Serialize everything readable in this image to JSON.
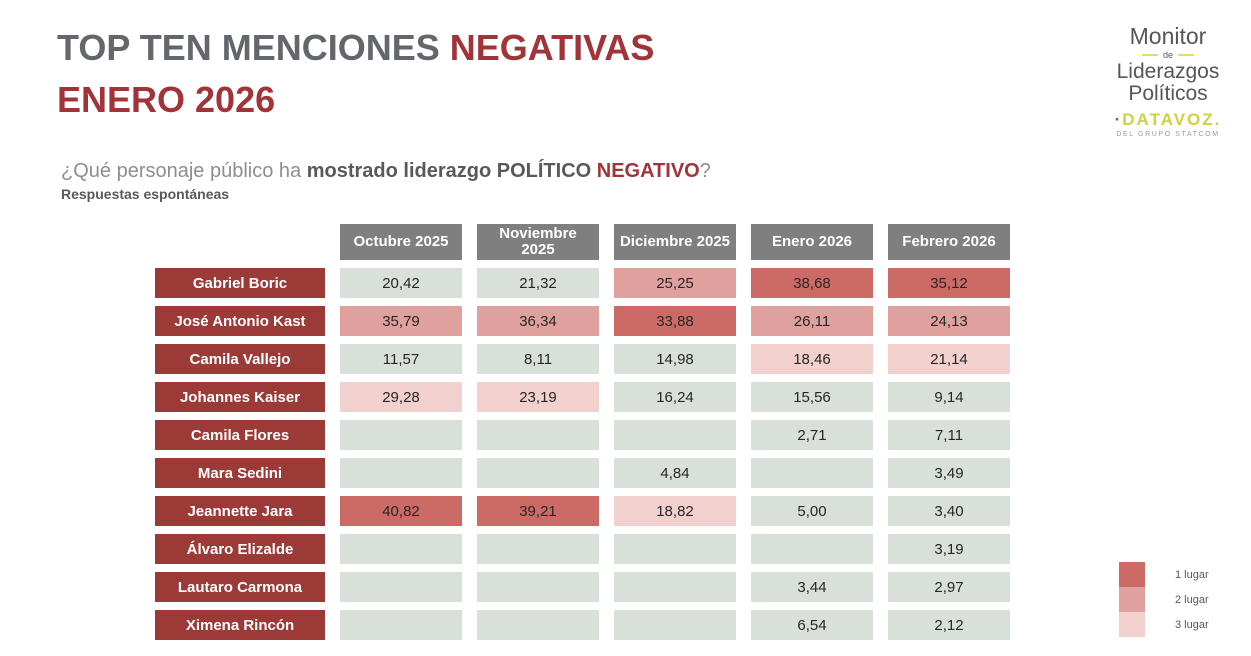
{
  "page": {
    "title": {
      "part_gray": "TOP TEN MENCIONES ",
      "part_red": "NEGATIVAS",
      "line2": "ENERO 2026"
    },
    "logo": {
      "monitor": "Monitor",
      "de": "de",
      "liderazgos": "Liderazgos",
      "politicos": "Políticos",
      "brand_dot": "·",
      "brand_name": "DATAVOZ.",
      "tagline": "DEL GRUPO STATCOM"
    },
    "question": {
      "lead": "¿Qué personaje público ha ",
      "bold_gray": "mostrado liderazgo POLÍTICO ",
      "bold_red": "NEGATIVO",
      "mark": "?",
      "subtitle": "Respuestas espontáneas"
    }
  },
  "chart_data": {
    "type": "table",
    "title": "TOP TEN MENCIONES NEGATIVAS ENERO 2026",
    "columns": [
      "Octubre 2025",
      "Noviembre\n2025",
      "Diciembre 2025",
      "Enero 2026",
      "Febrero 2026"
    ],
    "rank_colors": {
      "0": "#D9E0DA",
      "1": "#CC6B66",
      "2": "#DFA09E",
      "3": "#F2D0CE"
    },
    "rows": [
      {
        "name": "Gabriel Boric",
        "cells": [
          {
            "value": "20,42",
            "rank": 0
          },
          {
            "value": "21,32",
            "rank": 0
          },
          {
            "value": "25,25",
            "rank": 2
          },
          {
            "value": "38,68",
            "rank": 1
          },
          {
            "value": "35,12",
            "rank": 1
          }
        ]
      },
      {
        "name": "José Antonio Kast",
        "cells": [
          {
            "value": "35,79",
            "rank": 2
          },
          {
            "value": "36,34",
            "rank": 2
          },
          {
            "value": "33,88",
            "rank": 1
          },
          {
            "value": "26,11",
            "rank": 2
          },
          {
            "value": "24,13",
            "rank": 2
          }
        ]
      },
      {
        "name": "Camila Vallejo",
        "cells": [
          {
            "value": "11,57",
            "rank": 0
          },
          {
            "value": "8,11",
            "rank": 0
          },
          {
            "value": "14,98",
            "rank": 0
          },
          {
            "value": "18,46",
            "rank": 3
          },
          {
            "value": "21,14",
            "rank": 3
          }
        ]
      },
      {
        "name": "Johannes Kaiser",
        "cells": [
          {
            "value": "29,28",
            "rank": 3
          },
          {
            "value": "23,19",
            "rank": 3
          },
          {
            "value": "16,24",
            "rank": 0
          },
          {
            "value": "15,56",
            "rank": 0
          },
          {
            "value": "9,14",
            "rank": 0
          }
        ]
      },
      {
        "name": "Camila Flores",
        "cells": [
          {
            "value": "",
            "rank": 0
          },
          {
            "value": "",
            "rank": 0
          },
          {
            "value": "",
            "rank": 0
          },
          {
            "value": "2,71",
            "rank": 0
          },
          {
            "value": "7,11",
            "rank": 0
          }
        ]
      },
      {
        "name": "Mara Sedini",
        "cells": [
          {
            "value": "",
            "rank": 0
          },
          {
            "value": "",
            "rank": 0
          },
          {
            "value": "4,84",
            "rank": 0
          },
          {
            "value": "",
            "rank": 0
          },
          {
            "value": "3,49",
            "rank": 0
          }
        ]
      },
      {
        "name": "Jeannette Jara",
        "cells": [
          {
            "value": "40,82",
            "rank": 1
          },
          {
            "value": "39,21",
            "rank": 1
          },
          {
            "value": "18,82",
            "rank": 3
          },
          {
            "value": "5,00",
            "rank": 0
          },
          {
            "value": "3,40",
            "rank": 0
          }
        ]
      },
      {
        "name": "Álvaro Elizalde",
        "cells": [
          {
            "value": "",
            "rank": 0
          },
          {
            "value": "",
            "rank": 0
          },
          {
            "value": "",
            "rank": 0
          },
          {
            "value": "",
            "rank": 0
          },
          {
            "value": "3,19",
            "rank": 0
          }
        ]
      },
      {
        "name": "Lautaro Carmona",
        "cells": [
          {
            "value": "",
            "rank": 0
          },
          {
            "value": "",
            "rank": 0
          },
          {
            "value": "",
            "rank": 0
          },
          {
            "value": "3,44",
            "rank": 0
          },
          {
            "value": "2,97",
            "rank": 0
          }
        ]
      },
      {
        "name": "Ximena Rincón",
        "cells": [
          {
            "value": "",
            "rank": 0
          },
          {
            "value": "",
            "rank": 0
          },
          {
            "value": "",
            "rank": 0
          },
          {
            "value": "6,54",
            "rank": 0
          },
          {
            "value": "2,12",
            "rank": 0
          }
        ]
      }
    ]
  },
  "legend": {
    "items": [
      {
        "label": "1 lugar",
        "rank": 1
      },
      {
        "label": "2 lugar",
        "rank": 2
      },
      {
        "label": "3 lugar",
        "rank": 3
      }
    ]
  }
}
